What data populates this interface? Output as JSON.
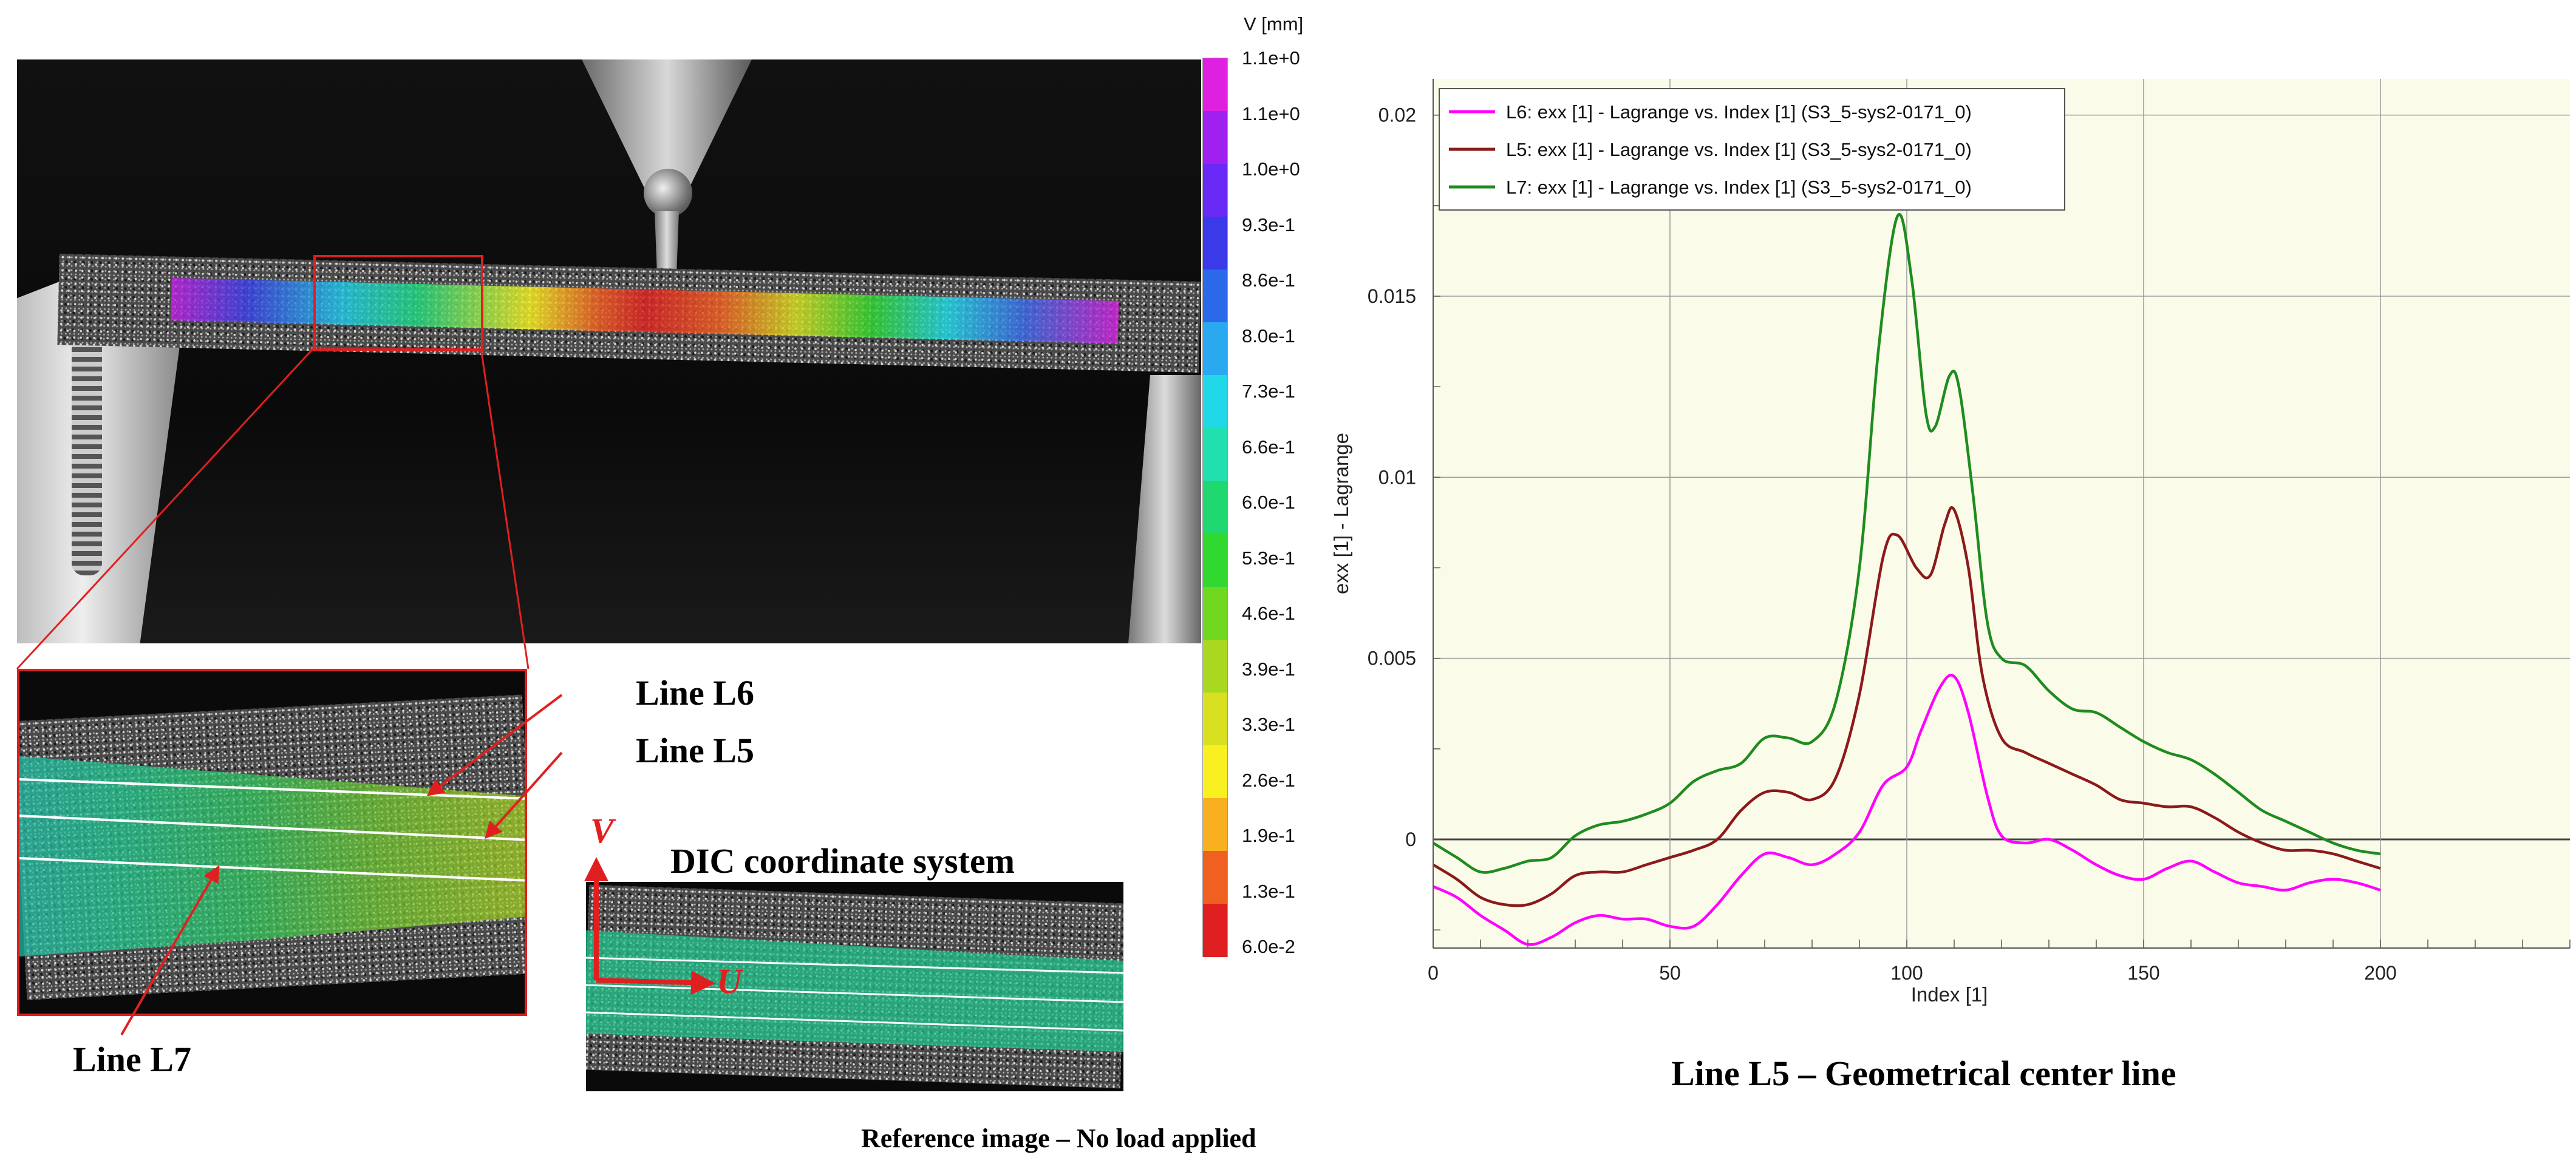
{
  "colorbar": {
    "title": "V [mm]",
    "labels": [
      "1.1e+0",
      "1.1e+0",
      "1.0e+0",
      "9.3e-1",
      "8.6e-1",
      "8.0e-1",
      "7.3e-1",
      "6.6e-1",
      "6.0e-1",
      "5.3e-1",
      "4.6e-1",
      "3.9e-1",
      "3.3e-1",
      "2.6e-1",
      "1.9e-1",
      "1.3e-1",
      "6.0e-2"
    ],
    "colors": [
      "#e020e0",
      "#a020f0",
      "#6a2af5",
      "#3a3ae8",
      "#2a6ae8",
      "#2aa8f0",
      "#20d8e8",
      "#20e0b0",
      "#20d870",
      "#30d830",
      "#70d820",
      "#a8d820",
      "#d8e020",
      "#f8f020",
      "#f8b020",
      "#f06020",
      "#e02020"
    ]
  },
  "annotations": {
    "line_l6": "Line L6",
    "line_l5": "Line L5",
    "line_l7": "Line L7",
    "dic_title": "DIC coordinate system",
    "axis_v": "V",
    "axis_u": "U",
    "reference_caption": "Reference image – No load applied",
    "chart_caption": "Line L5 – Geometrical center line"
  },
  "chart_data": {
    "type": "line",
    "xlabel": "Index [1]",
    "ylabel": "exx [1] - Lagrange",
    "xlim": [
      0,
      240
    ],
    "ylim": [
      -0.003,
      0.021
    ],
    "xticks": [
      0,
      50,
      100,
      150,
      200
    ],
    "yticks": [
      0,
      0.005,
      0.01,
      0.015,
      0.02
    ],
    "ytick_labels": [
      "0",
      "0.005",
      "0.01",
      "0.015",
      "0.02"
    ],
    "grid": true,
    "legend_position": "top-left",
    "series": [
      {
        "name": "L6: exx [1] - Lagrange vs. Index [1] (S3_5-sys2-0171_0)",
        "color": "#ff00ff",
        "points": [
          [
            0,
            -0.0013
          ],
          [
            5,
            -0.0016
          ],
          [
            10,
            -0.0021
          ],
          [
            15,
            -0.0025
          ],
          [
            20,
            -0.0029
          ],
          [
            25,
            -0.0027
          ],
          [
            30,
            -0.0023
          ],
          [
            35,
            -0.0021
          ],
          [
            40,
            -0.0022
          ],
          [
            45,
            -0.0022
          ],
          [
            50,
            -0.0024
          ],
          [
            55,
            -0.0024
          ],
          [
            60,
            -0.0018
          ],
          [
            65,
            -0.001
          ],
          [
            70,
            -0.0004
          ],
          [
            75,
            -0.0005
          ],
          [
            80,
            -0.0007
          ],
          [
            85,
            -0.0004
          ],
          [
            90,
            0.0002
          ],
          [
            95,
            0.0015
          ],
          [
            100,
            0.002
          ],
          [
            103,
            0.003
          ],
          [
            107,
            0.0042
          ],
          [
            110,
            0.0045
          ],
          [
            113,
            0.0035
          ],
          [
            117,
            0.0012
          ],
          [
            120,
            0.0001
          ],
          [
            125,
            -0.0001
          ],
          [
            130,
            0.0
          ],
          [
            135,
            -0.0003
          ],
          [
            140,
            -0.0007
          ],
          [
            145,
            -0.001
          ],
          [
            150,
            -0.0011
          ],
          [
            155,
            -0.0008
          ],
          [
            160,
            -0.0006
          ],
          [
            165,
            -0.0009
          ],
          [
            170,
            -0.0012
          ],
          [
            175,
            -0.0013
          ],
          [
            180,
            -0.0014
          ],
          [
            185,
            -0.0012
          ],
          [
            190,
            -0.0011
          ],
          [
            195,
            -0.0012
          ],
          [
            200,
            -0.0014
          ]
        ]
      },
      {
        "name": "L5: exx [1] - Lagrange vs. Index [1] (S3_5-sys2-0171_0)",
        "color": "#8b1a1a",
        "points": [
          [
            0,
            -0.0007
          ],
          [
            5,
            -0.0011
          ],
          [
            10,
            -0.0016
          ],
          [
            15,
            -0.0018
          ],
          [
            20,
            -0.0018
          ],
          [
            25,
            -0.0015
          ],
          [
            30,
            -0.001
          ],
          [
            35,
            -0.0009
          ],
          [
            40,
            -0.0009
          ],
          [
            45,
            -0.0007
          ],
          [
            50,
            -0.0005
          ],
          [
            55,
            -0.0003
          ],
          [
            60,
            0.0
          ],
          [
            65,
            0.0008
          ],
          [
            70,
            0.0013
          ],
          [
            75,
            0.0013
          ],
          [
            80,
            0.0011
          ],
          [
            85,
            0.0017
          ],
          [
            90,
            0.004
          ],
          [
            95,
            0.0078
          ],
          [
            98,
            0.0084
          ],
          [
            102,
            0.0075
          ],
          [
            105,
            0.0073
          ],
          [
            108,
            0.0087
          ],
          [
            110,
            0.0091
          ],
          [
            113,
            0.0075
          ],
          [
            116,
            0.0045
          ],
          [
            120,
            0.0028
          ],
          [
            125,
            0.0024
          ],
          [
            130,
            0.0021
          ],
          [
            135,
            0.0018
          ],
          [
            140,
            0.0015
          ],
          [
            145,
            0.0011
          ],
          [
            150,
            0.001
          ],
          [
            155,
            0.0009
          ],
          [
            160,
            0.0009
          ],
          [
            165,
            0.0006
          ],
          [
            170,
            0.0002
          ],
          [
            175,
            -0.0001
          ],
          [
            180,
            -0.0003
          ],
          [
            185,
            -0.0003
          ],
          [
            190,
            -0.0004
          ],
          [
            195,
            -0.0006
          ],
          [
            200,
            -0.0008
          ]
        ]
      },
      {
        "name": "L7: exx [1] - Lagrange vs. Index [1] (S3_5-sys2-0171_0)",
        "color": "#1e8c1e",
        "points": [
          [
            0,
            -0.0001
          ],
          [
            5,
            -0.0005
          ],
          [
            10,
            -0.0009
          ],
          [
            15,
            -0.0008
          ],
          [
            20,
            -0.0006
          ],
          [
            25,
            -0.0005
          ],
          [
            30,
            0.0001
          ],
          [
            35,
            0.0004
          ],
          [
            40,
            0.0005
          ],
          [
            45,
            0.0007
          ],
          [
            50,
            0.001
          ],
          [
            55,
            0.0016
          ],
          [
            60,
            0.0019
          ],
          [
            65,
            0.0021
          ],
          [
            70,
            0.0028
          ],
          [
            75,
            0.0028
          ],
          [
            80,
            0.0027
          ],
          [
            85,
            0.0038
          ],
          [
            90,
            0.0075
          ],
          [
            94,
            0.0135
          ],
          [
            98,
            0.0172
          ],
          [
            101,
            0.0155
          ],
          [
            104,
            0.0118
          ],
          [
            106,
            0.0114
          ],
          [
            109,
            0.0128
          ],
          [
            111,
            0.0125
          ],
          [
            114,
            0.0095
          ],
          [
            117,
            0.006
          ],
          [
            120,
            0.005
          ],
          [
            125,
            0.0048
          ],
          [
            130,
            0.0041
          ],
          [
            135,
            0.0036
          ],
          [
            140,
            0.0035
          ],
          [
            145,
            0.0031
          ],
          [
            150,
            0.0027
          ],
          [
            155,
            0.0024
          ],
          [
            160,
            0.0022
          ],
          [
            165,
            0.0018
          ],
          [
            170,
            0.0013
          ],
          [
            175,
            0.0008
          ],
          [
            180,
            0.0005
          ],
          [
            185,
            0.0002
          ],
          [
            190,
            -0.0001
          ],
          [
            195,
            -0.0003
          ],
          [
            200,
            -0.0004
          ]
        ]
      }
    ]
  }
}
